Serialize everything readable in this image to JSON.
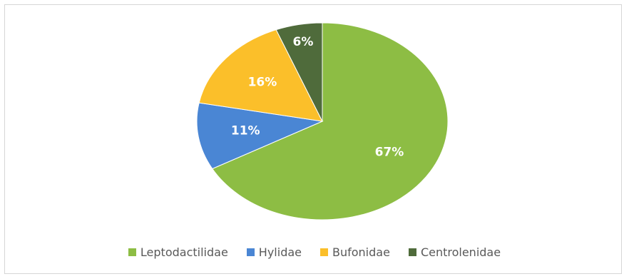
{
  "chart_data": {
    "type": "pie",
    "title": "",
    "labels": [
      "Leptodactilidae",
      "Hylidae",
      "Bufonidae",
      "Centrolenidae"
    ],
    "values": [
      67,
      11,
      16,
      6
    ],
    "data_labels": [
      "67%",
      "11%",
      "16%",
      "6%"
    ],
    "colors": [
      "#8dbd44",
      "#4a86d4",
      "#fbbf2a",
      "#4f6b3b"
    ],
    "legend": "bottom",
    "grid": false
  }
}
